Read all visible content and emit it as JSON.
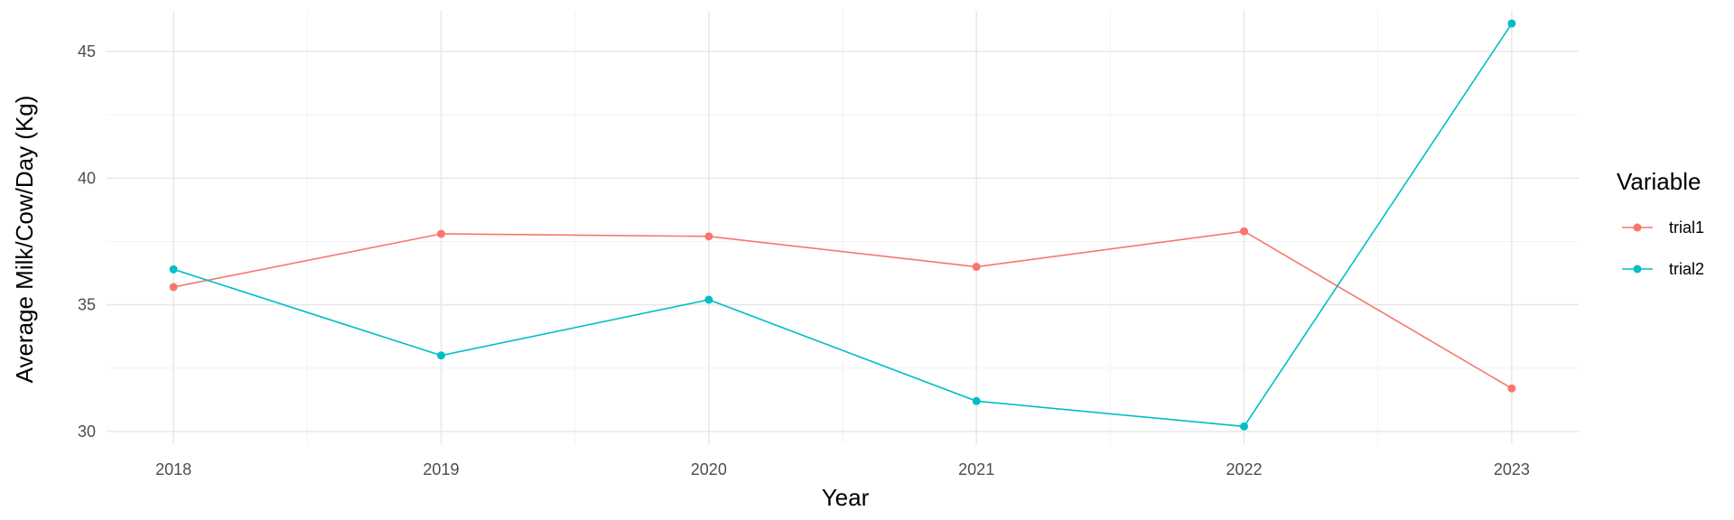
{
  "chart_data": {
    "type": "line",
    "xlabel": "Year",
    "ylabel": "Average Milk/Cow/Day (Kg)",
    "x": [
      "2018",
      "2019",
      "2020",
      "2021",
      "2022",
      "2023"
    ],
    "xlim": [
      2017.75,
      2023.25
    ],
    "ylim": [
      29.5,
      46.6
    ],
    "y_ticks": [
      "30",
      "35",
      "40",
      "45"
    ],
    "grid": true,
    "legend_title": "Variable",
    "legend_position": "right",
    "series": [
      {
        "name": "trial1",
        "color": "#F8766D",
        "values": [
          35.7,
          37.8,
          37.7,
          36.5,
          37.9,
          31.7
        ]
      },
      {
        "name": "trial2",
        "color": "#00BFC4",
        "values": [
          36.4,
          33.0,
          35.2,
          31.2,
          30.2,
          46.1
        ]
      }
    ]
  }
}
